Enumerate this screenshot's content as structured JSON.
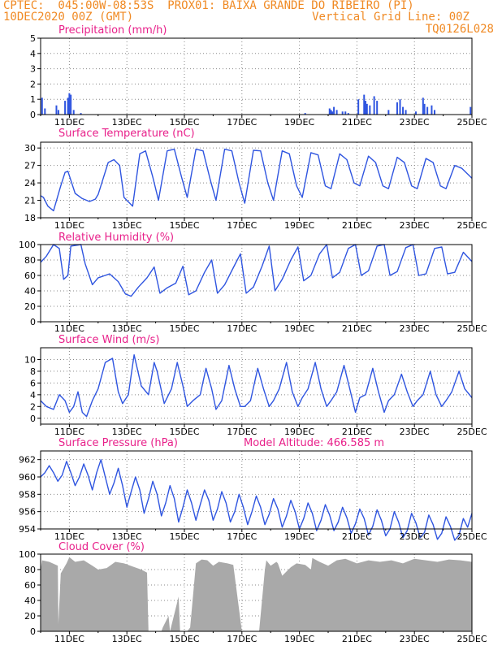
{
  "header": {
    "line1": "CPTEC:  045:00W-08:53S  PROX01: BAIXA GRANDE DO RIBEIRO (PI)",
    "line2_left": "10DEC2020 00Z (GMT)",
    "line2_right": "Vertical Grid Line: 00Z",
    "line3_right": "TQ0126L028"
  },
  "colors": {
    "title": "#e8208a",
    "header": "#f08a24",
    "series": "#2f55e0",
    "cloud": "#a9a9a9",
    "axis": "#000000"
  },
  "x_axis": {
    "tick_labels": [
      "11DEC",
      "13DEC",
      "15DEC",
      "17DEC",
      "19DEC",
      "21DEC",
      "23DEC",
      "25DEC"
    ],
    "start_date": "10DEC2020 00Z",
    "end_date": "25DEC2020 00Z"
  },
  "chart_data": [
    {
      "type": "bar",
      "title": "Precipitation (mm/h)",
      "ylim": [
        0,
        5
      ],
      "yticks": [
        0,
        1,
        2,
        3,
        4,
        5
      ],
      "x_days": [
        0.05,
        0.15,
        0.55,
        0.62,
        0.85,
        0.95,
        1.0,
        1.05,
        1.15,
        1.4,
        9.2,
        10.05,
        10.1,
        10.15,
        10.2,
        10.3,
        10.5,
        10.6,
        10.7,
        11.05,
        11.25,
        11.3,
        11.35,
        11.45,
        11.6,
        11.7,
        12.1,
        12.4,
        12.5,
        12.6,
        12.7,
        13.05,
        13.3,
        13.35,
        13.45,
        13.6,
        13.7,
        14.95
      ],
      "values": [
        1.1,
        0.4,
        0.6,
        0.3,
        0.9,
        1.1,
        1.4,
        1.3,
        0.3,
        0.1,
        0.1,
        0.4,
        0.3,
        0.2,
        0.5,
        0.3,
        0.2,
        0.2,
        0.1,
        1.0,
        1.3,
        0.9,
        0.7,
        0.6,
        1.2,
        0.9,
        0.3,
        0.8,
        1.0,
        0.5,
        0.3,
        0.2,
        1.1,
        0.7,
        0.5,
        0.6,
        0.3,
        0.5
      ]
    },
    {
      "type": "line",
      "title": "Surface Temperature (nC)",
      "ylim": [
        18,
        31
      ],
      "yticks": [
        18,
        21,
        24,
        27,
        30
      ],
      "x_days": [
        0,
        0.1,
        0.25,
        0.45,
        0.7,
        0.85,
        0.95,
        1.2,
        1.45,
        1.7,
        1.9,
        2.0,
        2.35,
        2.55,
        2.75,
        2.9,
        3.2,
        3.45,
        3.65,
        3.9,
        4.1,
        4.4,
        4.65,
        4.9,
        5.1,
        5.4,
        5.65,
        5.9,
        6.1,
        6.4,
        6.65,
        6.9,
        7.1,
        7.4,
        7.65,
        7.9,
        8.1,
        8.4,
        8.65,
        8.9,
        9.1,
        9.4,
        9.65,
        9.9,
        10.1,
        10.4,
        10.65,
        10.9,
        11.1,
        11.4,
        11.65,
        11.9,
        12.1,
        12.4,
        12.65,
        12.9,
        13.1,
        13.4,
        13.65,
        13.9,
        14.1,
        14.4,
        14.65,
        15.0
      ],
      "values": [
        21.8,
        21.5,
        20,
        19.2,
        23.5,
        25.8,
        26,
        22.2,
        21.3,
        20.8,
        21.2,
        22,
        27.5,
        28,
        27,
        21.5,
        20,
        29,
        29.5,
        25,
        21,
        29.5,
        29.8,
        25,
        21.5,
        29.8,
        29.5,
        24.5,
        21,
        29.8,
        29.5,
        24,
        20.5,
        29.6,
        29.5,
        24,
        21,
        29.5,
        29,
        23.5,
        21.5,
        29.2,
        28.8,
        23.5,
        23,
        29,
        28,
        24,
        23.5,
        28.6,
        27.5,
        23.5,
        23,
        28.4,
        27.5,
        23.5,
        23,
        28.2,
        27.5,
        23.5,
        23,
        27,
        26.5,
        24.8
      ]
    },
    {
      "type": "line",
      "title": "Relative Humidity (%)",
      "ylim": [
        0,
        100
      ],
      "yticks": [
        0,
        20,
        40,
        60,
        80,
        100
      ],
      "x_days": [
        0,
        0.2,
        0.45,
        0.65,
        0.8,
        0.95,
        1.05,
        1.4,
        1.55,
        1.8,
        2.0,
        2.4,
        2.7,
        2.95,
        3.15,
        3.4,
        3.7,
        3.95,
        4.15,
        4.4,
        4.7,
        4.95,
        5.15,
        5.4,
        5.7,
        5.95,
        6.15,
        6.4,
        6.7,
        6.95,
        7.15,
        7.4,
        7.7,
        7.95,
        8.15,
        8.4,
        8.7,
        8.95,
        9.15,
        9.4,
        9.7,
        9.95,
        10.15,
        10.4,
        10.7,
        10.95,
        11.15,
        11.4,
        11.7,
        11.95,
        12.15,
        12.4,
        12.7,
        12.95,
        13.15,
        13.4,
        13.7,
        13.95,
        14.15,
        14.4,
        14.7,
        15.0
      ],
      "values": [
        77,
        85,
        100,
        95,
        55,
        60,
        98,
        100,
        75,
        48,
        57,
        62,
        52,
        36,
        33,
        45,
        57,
        71,
        37,
        44,
        50,
        72,
        35,
        40,
        64,
        80,
        37,
        48,
        70,
        88,
        37,
        45,
        72,
        98,
        40,
        55,
        80,
        97,
        53,
        60,
        88,
        100,
        57,
        64,
        95,
        100,
        60,
        66,
        98,
        100,
        60,
        65,
        96,
        100,
        60,
        62,
        95,
        97,
        62,
        64,
        90,
        78
      ]
    },
    {
      "type": "line",
      "title": "Surface Wind (m/s)",
      "ylim": [
        -1,
        12
      ],
      "yticks": [
        0,
        2,
        4,
        6,
        8,
        10
      ],
      "x_days": [
        0,
        0.2,
        0.45,
        0.65,
        0.85,
        1.0,
        1.15,
        1.3,
        1.45,
        1.6,
        1.8,
        2.0,
        2.25,
        2.5,
        2.7,
        2.85,
        3.05,
        3.25,
        3.5,
        3.75,
        3.95,
        4.05,
        4.3,
        4.55,
        4.75,
        4.95,
        5.1,
        5.3,
        5.55,
        5.75,
        5.95,
        6.1,
        6.3,
        6.55,
        6.75,
        6.95,
        7.1,
        7.3,
        7.55,
        7.75,
        7.95,
        8.1,
        8.3,
        8.55,
        8.75,
        8.95,
        9.1,
        9.3,
        9.55,
        9.75,
        9.95,
        10.1,
        10.3,
        10.55,
        10.75,
        10.95,
        11.1,
        11.3,
        11.55,
        11.75,
        11.95,
        12.1,
        12.3,
        12.55,
        12.75,
        12.95,
        13.1,
        13.3,
        13.55,
        13.75,
        13.95,
        14.1,
        14.3,
        14.55,
        14.75,
        15.0
      ],
      "values": [
        3,
        2,
        1.5,
        4,
        3,
        1,
        2,
        4.5,
        1,
        0.3,
        3,
        5,
        9.5,
        10.2,
        4.5,
        2.5,
        4,
        10.8,
        5.5,
        4,
        9.5,
        8,
        2.5,
        5,
        9.5,
        5.5,
        2,
        3,
        4,
        8.5,
        5,
        1.5,
        3,
        9,
        5,
        2,
        2,
        3,
        8.5,
        5,
        2,
        3,
        5,
        9.5,
        4.5,
        2,
        3.5,
        5,
        9.5,
        5,
        2,
        3,
        4.5,
        9,
        5,
        1,
        3.5,
        4,
        8.5,
        4.5,
        1,
        3,
        4,
        7.5,
        4.5,
        2,
        3,
        4,
        8,
        4,
        2,
        3,
        4.5,
        8,
        5,
        3.5
      ]
    },
    {
      "type": "line",
      "title": "Surface Pressure (hPa)",
      "annotation": "Model Altitude: 466.585  m",
      "ylim": [
        954,
        963
      ],
      "yticks": [
        954,
        956,
        958,
        960,
        962
      ],
      "x_days": [
        0,
        0.15,
        0.3,
        0.45,
        0.6,
        0.75,
        0.9,
        1.05,
        1.2,
        1.35,
        1.5,
        1.65,
        1.8,
        1.95,
        2.1,
        2.25,
        2.4,
        2.55,
        2.7,
        2.85,
        3.0,
        3.15,
        3.3,
        3.45,
        3.6,
        3.75,
        3.9,
        4.05,
        4.2,
        4.35,
        4.5,
        4.65,
        4.8,
        4.95,
        5.1,
        5.25,
        5.4,
        5.55,
        5.7,
        5.85,
        6.0,
        6.15,
        6.3,
        6.45,
        6.6,
        6.75,
        6.9,
        7.05,
        7.2,
        7.35,
        7.5,
        7.65,
        7.8,
        7.95,
        8.1,
        8.25,
        8.4,
        8.55,
        8.7,
        8.85,
        9.0,
        9.15,
        9.3,
        9.45,
        9.6,
        9.75,
        9.9,
        10.05,
        10.2,
        10.35,
        10.5,
        10.65,
        10.8,
        10.95,
        11.1,
        11.25,
        11.4,
        11.55,
        11.7,
        11.85,
        12.0,
        12.15,
        12.3,
        12.45,
        12.6,
        12.75,
        12.9,
        13.05,
        13.2,
        13.35,
        13.5,
        13.65,
        13.8,
        13.95,
        14.1,
        14.25,
        14.4,
        14.55,
        14.7,
        14.85,
        15.0
      ],
      "values": [
        960,
        960.5,
        961.3,
        960.5,
        959.5,
        960.2,
        961.8,
        960.5,
        959,
        960,
        961.5,
        960.2,
        958.5,
        960.5,
        962,
        960,
        958,
        959.3,
        961,
        959,
        956.5,
        958.3,
        960,
        958.5,
        955.8,
        957.5,
        959.5,
        958,
        955.5,
        957,
        959,
        957.5,
        954.8,
        956.5,
        958.5,
        957,
        955,
        956.8,
        958.5,
        957.3,
        955,
        956.3,
        958.3,
        957,
        954.8,
        956,
        958,
        956.5,
        954.5,
        956,
        957.8,
        956.5,
        954.5,
        955.7,
        957.5,
        956.3,
        954.2,
        955.5,
        957.3,
        956,
        954,
        955.2,
        957,
        955.8,
        953.8,
        955,
        956.8,
        955.6,
        953.8,
        954.8,
        956.5,
        955.3,
        953.5,
        954.6,
        956.3,
        955.2,
        953.3,
        954.3,
        956.2,
        955,
        953.2,
        954,
        956,
        954.8,
        953,
        953.8,
        955.8,
        954.7,
        953,
        953.6,
        955.6,
        954.5,
        952.8,
        953.5,
        955.4,
        954.3,
        952.7,
        953.3,
        955.2,
        954.2,
        955.8
      ]
    },
    {
      "type": "area",
      "title": "Cloud Cover (%)",
      "ylim": [
        0,
        100
      ],
      "yticks": [
        0,
        20,
        40,
        60,
        80,
        100
      ],
      "x_days": [
        0,
        0.05,
        0.3,
        0.6,
        0.62,
        0.7,
        0.9,
        1.0,
        1.2,
        1.5,
        1.8,
        2.0,
        2.3,
        2.6,
        2.9,
        3.2,
        3.5,
        3.7,
        3.75,
        4.2,
        4.25,
        4.45,
        4.5,
        4.8,
        4.85,
        5.1,
        5.2,
        5.4,
        5.6,
        5.8,
        6.0,
        6.2,
        6.5,
        6.7,
        7.0,
        7.3,
        7.6,
        7.8,
        7.85,
        8.0,
        8.2,
        8.25,
        8.4,
        8.7,
        8.9,
        9.2,
        9.4,
        9.45,
        9.7,
        10.0,
        10.3,
        10.6,
        11.0,
        11.4,
        11.8,
        12.2,
        12.6,
        13.0,
        13.4,
        13.8,
        14.2,
        14.6,
        15.0
      ],
      "values": [
        80,
        92,
        90,
        85,
        10,
        75,
        88,
        96,
        90,
        92,
        85,
        80,
        82,
        90,
        88,
        84,
        80,
        76,
        0,
        0,
        5,
        20,
        0,
        45,
        0,
        0,
        5,
        88,
        93,
        92,
        85,
        90,
        88,
        86,
        0,
        0,
        0,
        80,
        92,
        85,
        90,
        88,
        72,
        83,
        88,
        86,
        80,
        95,
        90,
        85,
        92,
        94,
        88,
        92,
        90,
        92,
        88,
        94,
        92,
        90,
        93,
        92,
        90
      ]
    }
  ]
}
